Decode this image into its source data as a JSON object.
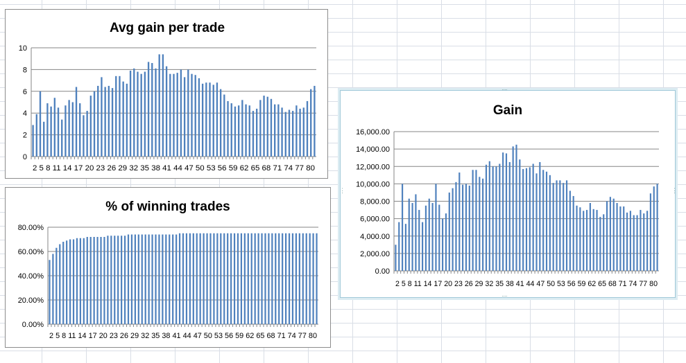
{
  "colors": {
    "bar": "#4f81bd",
    "grid": "#868686",
    "axis": "#868686"
  },
  "chart_data": [
    {
      "id": "avg",
      "type": "bar",
      "title": "Avg gain per trade",
      "ylim": [
        0,
        10
      ],
      "yticks": [
        0,
        2,
        4,
        6,
        8,
        10
      ],
      "ytick_labels": [
        "0",
        "2",
        "4",
        "6",
        "8",
        "10"
      ],
      "x_tick_labels": "2  5  8 11 14 17 20 23 26 29 32 35 38 41 44 47 50 53 56 59 62 65 68 71 74 77 80",
      "x": [
        2,
        3,
        4,
        5,
        6,
        7,
        8,
        9,
        10,
        11,
        12,
        13,
        14,
        15,
        16,
        17,
        18,
        19,
        20,
        21,
        22,
        23,
        24,
        25,
        26,
        27,
        28,
        29,
        30,
        31,
        32,
        33,
        34,
        35,
        36,
        37,
        38,
        39,
        40,
        41,
        42,
        43,
        44,
        45,
        46,
        47,
        48,
        49,
        50,
        51,
        52,
        53,
        54,
        55,
        56,
        57,
        58,
        59,
        60,
        61,
        62,
        63,
        64,
        65,
        66,
        67,
        68,
        69,
        70,
        71,
        72,
        73,
        74,
        75,
        76,
        77,
        78,
        79,
        80
      ],
      "values": [
        2.9,
        3.9,
        6.0,
        3.2,
        4.9,
        4.6,
        5.4,
        4.5,
        3.4,
        4.7,
        5.2,
        5.0,
        6.4,
        4.9,
        3.8,
        4.2,
        5.6,
        6.0,
        6.5,
        7.3,
        6.4,
        6.5,
        6.3,
        7.4,
        7.4,
        6.9,
        6.7,
        7.9,
        8.1,
        7.8,
        7.6,
        7.8,
        8.7,
        8.6,
        8.1,
        9.4,
        9.4,
        8.3,
        7.6,
        7.6,
        7.7,
        8.0,
        7.3,
        8.0,
        7.6,
        7.5,
        7.2,
        6.7,
        6.8,
        6.8,
        6.6,
        6.8,
        6.2,
        5.7,
        5.1,
        4.9,
        4.6,
        4.7,
        5.2,
        4.8,
        4.7,
        4.2,
        4.4,
        5.2,
        5.6,
        5.5,
        5.3,
        4.8,
        4.8,
        4.5,
        4.1,
        4.3,
        4.2,
        4.7,
        4.4,
        4.5,
        5.1,
        6.2,
        6.5
      ]
    },
    {
      "id": "win",
      "type": "bar",
      "title": "% of winning trades",
      "ylim": [
        0,
        0.8
      ],
      "yticks": [
        0,
        0.2,
        0.4,
        0.6,
        0.8
      ],
      "ytick_labels": [
        "0.00%",
        "20.00%",
        "40.00%",
        "60.00%",
        "80.00%"
      ],
      "x_tick_labels": "2  5  8 11 14 17 20 23 26 29 32 35 38 41 44 47 50 53 56 59 62 65 68 71 74 77 80",
      "x": [
        2,
        3,
        4,
        5,
        6,
        7,
        8,
        9,
        10,
        11,
        12,
        13,
        14,
        15,
        16,
        17,
        18,
        19,
        20,
        21,
        22,
        23,
        24,
        25,
        26,
        27,
        28,
        29,
        30,
        31,
        32,
        33,
        34,
        35,
        36,
        37,
        38,
        39,
        40,
        41,
        42,
        43,
        44,
        45,
        46,
        47,
        48,
        49,
        50,
        51,
        52,
        53,
        54,
        55,
        56,
        57,
        58,
        59,
        60,
        61,
        62,
        63,
        64,
        65,
        66,
        67,
        68,
        69,
        70,
        71,
        72,
        73,
        74,
        75,
        76,
        77,
        78,
        79,
        80
      ],
      "values": [
        0.53,
        0.58,
        0.63,
        0.66,
        0.68,
        0.69,
        0.7,
        0.7,
        0.71,
        0.71,
        0.71,
        0.72,
        0.72,
        0.72,
        0.72,
        0.72,
        0.72,
        0.73,
        0.73,
        0.73,
        0.73,
        0.73,
        0.73,
        0.74,
        0.74,
        0.74,
        0.74,
        0.74,
        0.74,
        0.74,
        0.74,
        0.74,
        0.74,
        0.74,
        0.74,
        0.74,
        0.74,
        0.74,
        0.75,
        0.75,
        0.75,
        0.75,
        0.75,
        0.75,
        0.75,
        0.75,
        0.75,
        0.75,
        0.75,
        0.75,
        0.75,
        0.75,
        0.75,
        0.75,
        0.75,
        0.75,
        0.75,
        0.75,
        0.75,
        0.75,
        0.75,
        0.75,
        0.75,
        0.75,
        0.75,
        0.75,
        0.75,
        0.75,
        0.75,
        0.75,
        0.75,
        0.75,
        0.75,
        0.75,
        0.75,
        0.75,
        0.75,
        0.75,
        0.75
      ]
    },
    {
      "id": "gain",
      "type": "bar",
      "title": "Gain",
      "ylim": [
        0,
        16000
      ],
      "yticks": [
        0,
        2000,
        4000,
        6000,
        8000,
        10000,
        12000,
        14000,
        16000
      ],
      "ytick_labels": [
        "0.00",
        "2,000.00",
        "4,000.00",
        "6,000.00",
        "8,000.00",
        "10,000.00",
        "12,000.00",
        "14,000.00",
        "16,000.00"
      ],
      "x_tick_labels": "2  5  8 11 14 17 20 23 26 29 32 35 38 41 44 47 50 53 56 59 62 65 68 71 74 77 80",
      "x": [
        2,
        3,
        4,
        5,
        6,
        7,
        8,
        9,
        10,
        11,
        12,
        13,
        14,
        15,
        16,
        17,
        18,
        19,
        20,
        21,
        22,
        23,
        24,
        25,
        26,
        27,
        28,
        29,
        30,
        31,
        32,
        33,
        34,
        35,
        36,
        37,
        38,
        39,
        40,
        41,
        42,
        43,
        44,
        45,
        46,
        47,
        48,
        49,
        50,
        51,
        52,
        53,
        54,
        55,
        56,
        57,
        58,
        59,
        60,
        61,
        62,
        63,
        64,
        65,
        66,
        67,
        68,
        69,
        70,
        71,
        72,
        73,
        74,
        75,
        76,
        77,
        78,
        79,
        80
      ],
      "values": [
        3000,
        5600,
        10000,
        5400,
        8300,
        7800,
        8800,
        7000,
        5600,
        7500,
        8300,
        7800,
        10000,
        7600,
        6000,
        6600,
        9000,
        9500,
        10200,
        11300,
        9900,
        10000,
        9800,
        11600,
        11600,
        10800,
        10600,
        12200,
        12600,
        12000,
        12000,
        12300,
        13600,
        13500,
        12500,
        14300,
        14500,
        12800,
        11700,
        11800,
        11900,
        12300,
        11200,
        12500,
        11600,
        11400,
        11000,
        10100,
        10400,
        10400,
        10100,
        10400,
        9200,
        8600,
        7500,
        7300,
        6900,
        7000,
        7800,
        7100,
        7000,
        6200,
        6500,
        8000,
        8500,
        8300,
        7800,
        7400,
        7400,
        6700,
        6900,
        6400,
        6400,
        7000,
        6600,
        6900,
        8900,
        9700,
        10000
      ]
    }
  ]
}
